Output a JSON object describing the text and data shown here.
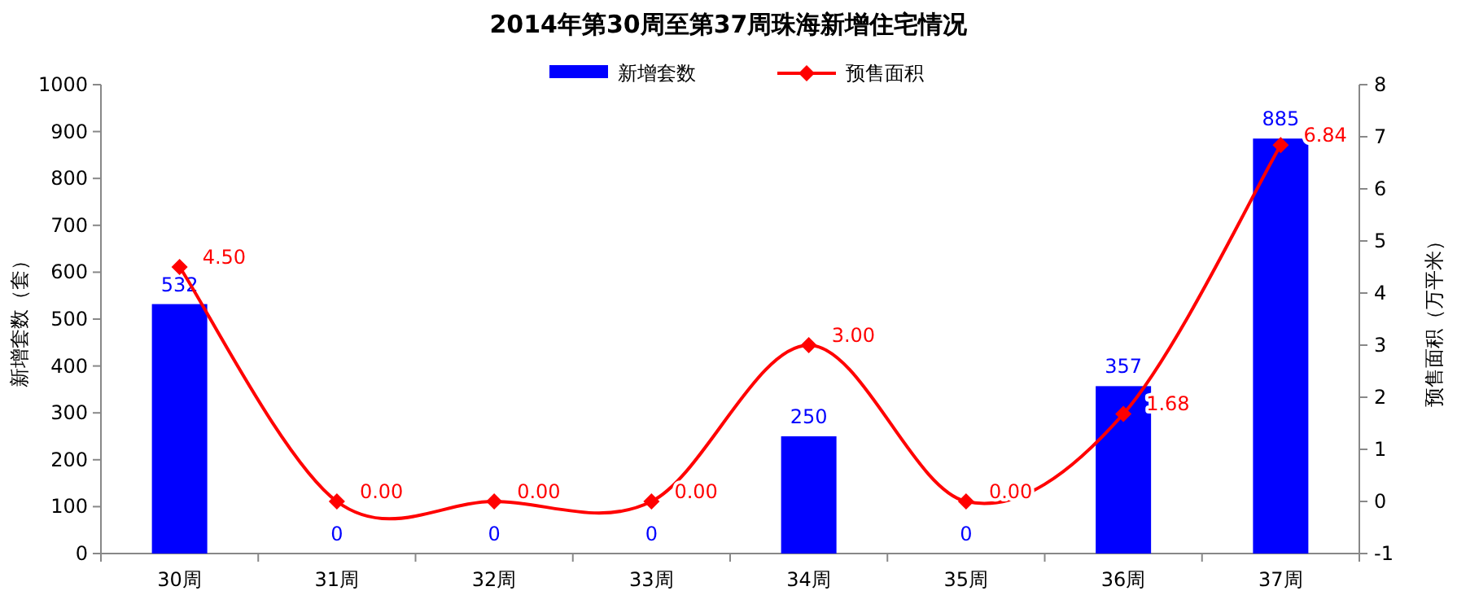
{
  "chart_data": {
    "type": "bar",
    "title": "2014年第30周至第37周珠海新增住宅情况",
    "ylabel": "新增套数（套）",
    "y2label": "预售面积（万平米）",
    "categories": [
      "30周",
      "31周",
      "32周",
      "33周",
      "34周",
      "35周",
      "36周",
      "37周"
    ],
    "series": [
      {
        "name": "新增套数",
        "color": "#0000ff",
        "values": [
          532,
          0,
          0,
          0,
          250,
          0,
          357,
          885
        ],
        "value_labels": [
          "532",
          "0",
          "0",
          "0",
          "250",
          "0",
          "357",
          "885"
        ]
      },
      {
        "name": "预售面积",
        "type": "line",
        "axis": "y2",
        "color": "#ff0000",
        "marker": "diamond",
        "values": [
          4.5,
          0,
          0,
          0,
          3,
          0,
          1.68,
          6.84
        ],
        "value_labels": [
          "4.50",
          "0.00",
          "0.00",
          "0.00",
          "3.00",
          "0.00",
          "1.68",
          "6.84"
        ]
      }
    ],
    "ylim": [
      0,
      1000
    ],
    "yticks": [
      0,
      100,
      200,
      300,
      400,
      500,
      600,
      700,
      800,
      900,
      1000
    ],
    "y2lim": [
      -1,
      8
    ],
    "y2ticks": [
      -1,
      0,
      1,
      2,
      3,
      4,
      5,
      6,
      7,
      8
    ],
    "legend": "top",
    "grid": false
  }
}
